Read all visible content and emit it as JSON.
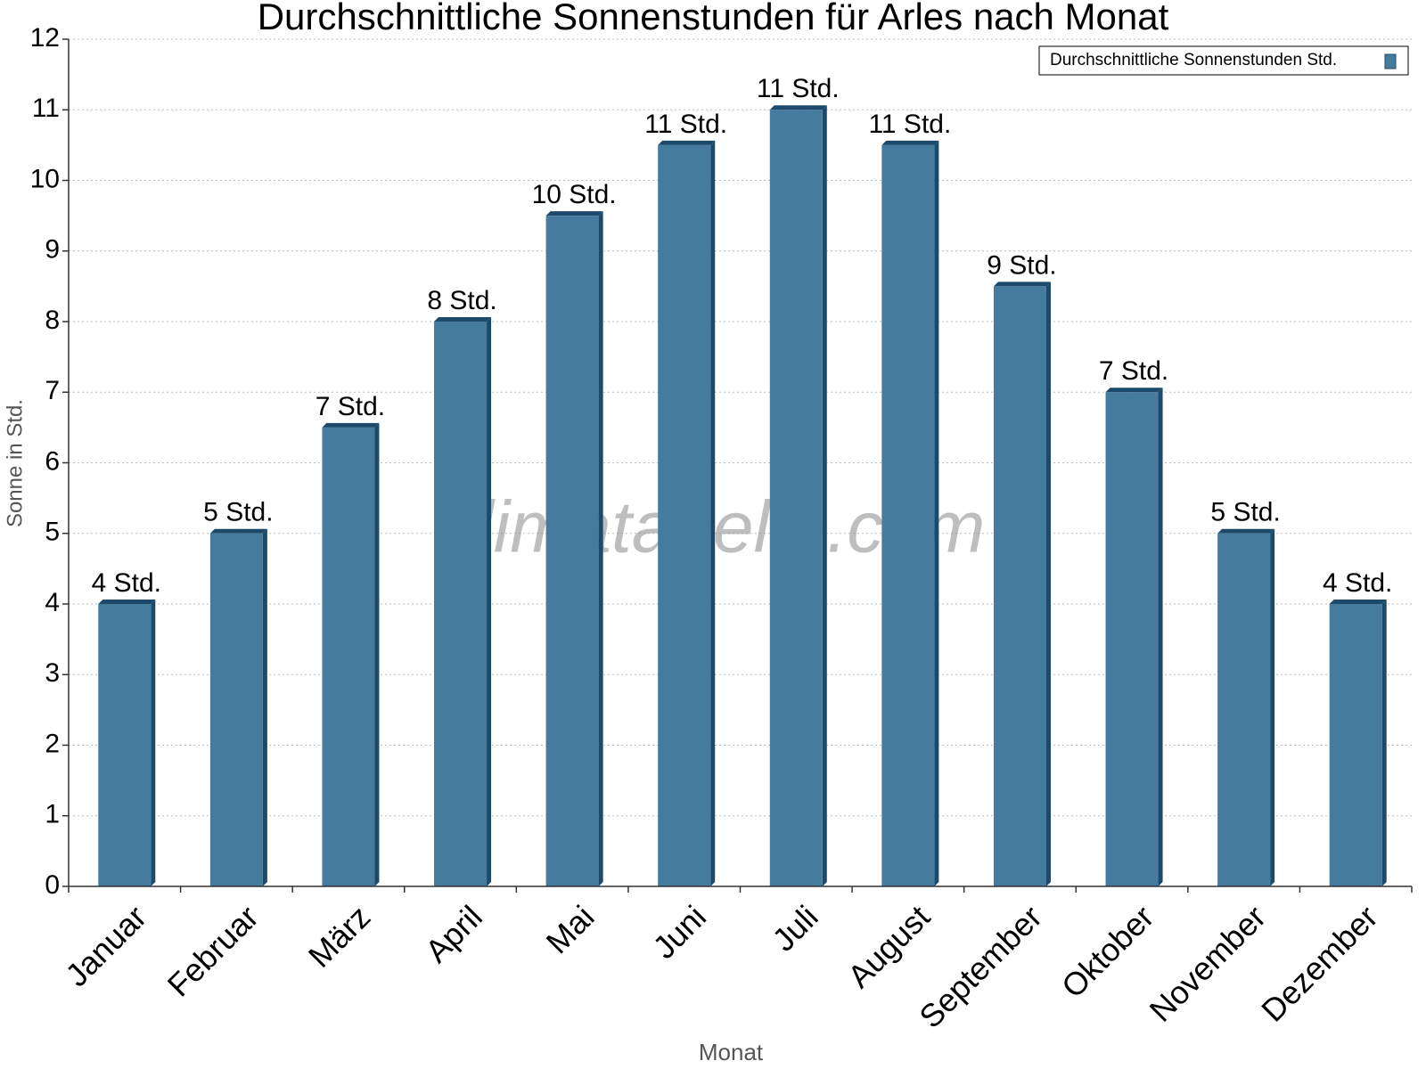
{
  "chart_data": {
    "type": "bar",
    "title": "Durchschnittliche Sonnenstunden für Arles nach Monat",
    "x_label": "Monat",
    "y_label": "Sonne in Std.",
    "watermark": "klimatabelle.com",
    "categories": [
      "Januar",
      "Februar",
      "März",
      "April",
      "Mai",
      "Juni",
      "Juli",
      "August",
      "September",
      "Oktober",
      "November",
      "Dezember"
    ],
    "series": [
      {
        "name": "Durchschnittliche Sonnenstunden Std.",
        "color": "#457b9d",
        "values": [
          4,
          5,
          6.5,
          8,
          9.5,
          10.5,
          11,
          10.5,
          8.5,
          7,
          5,
          4
        ],
        "value_labels": [
          "4 Std.",
          "5 Std.",
          "7 Std.",
          "8 Std.",
          "10 Std.",
          "11 Std.",
          "11 Std.",
          "11 Std.",
          "9 Std.",
          "7 Std.",
          "5 Std.",
          "4 Std."
        ]
      }
    ],
    "ylim": [
      0,
      12
    ],
    "yticks": [
      0,
      1,
      2,
      3,
      4,
      5,
      6,
      7,
      8,
      9,
      10,
      11,
      12
    ],
    "grid": true,
    "legend": "top-right"
  }
}
